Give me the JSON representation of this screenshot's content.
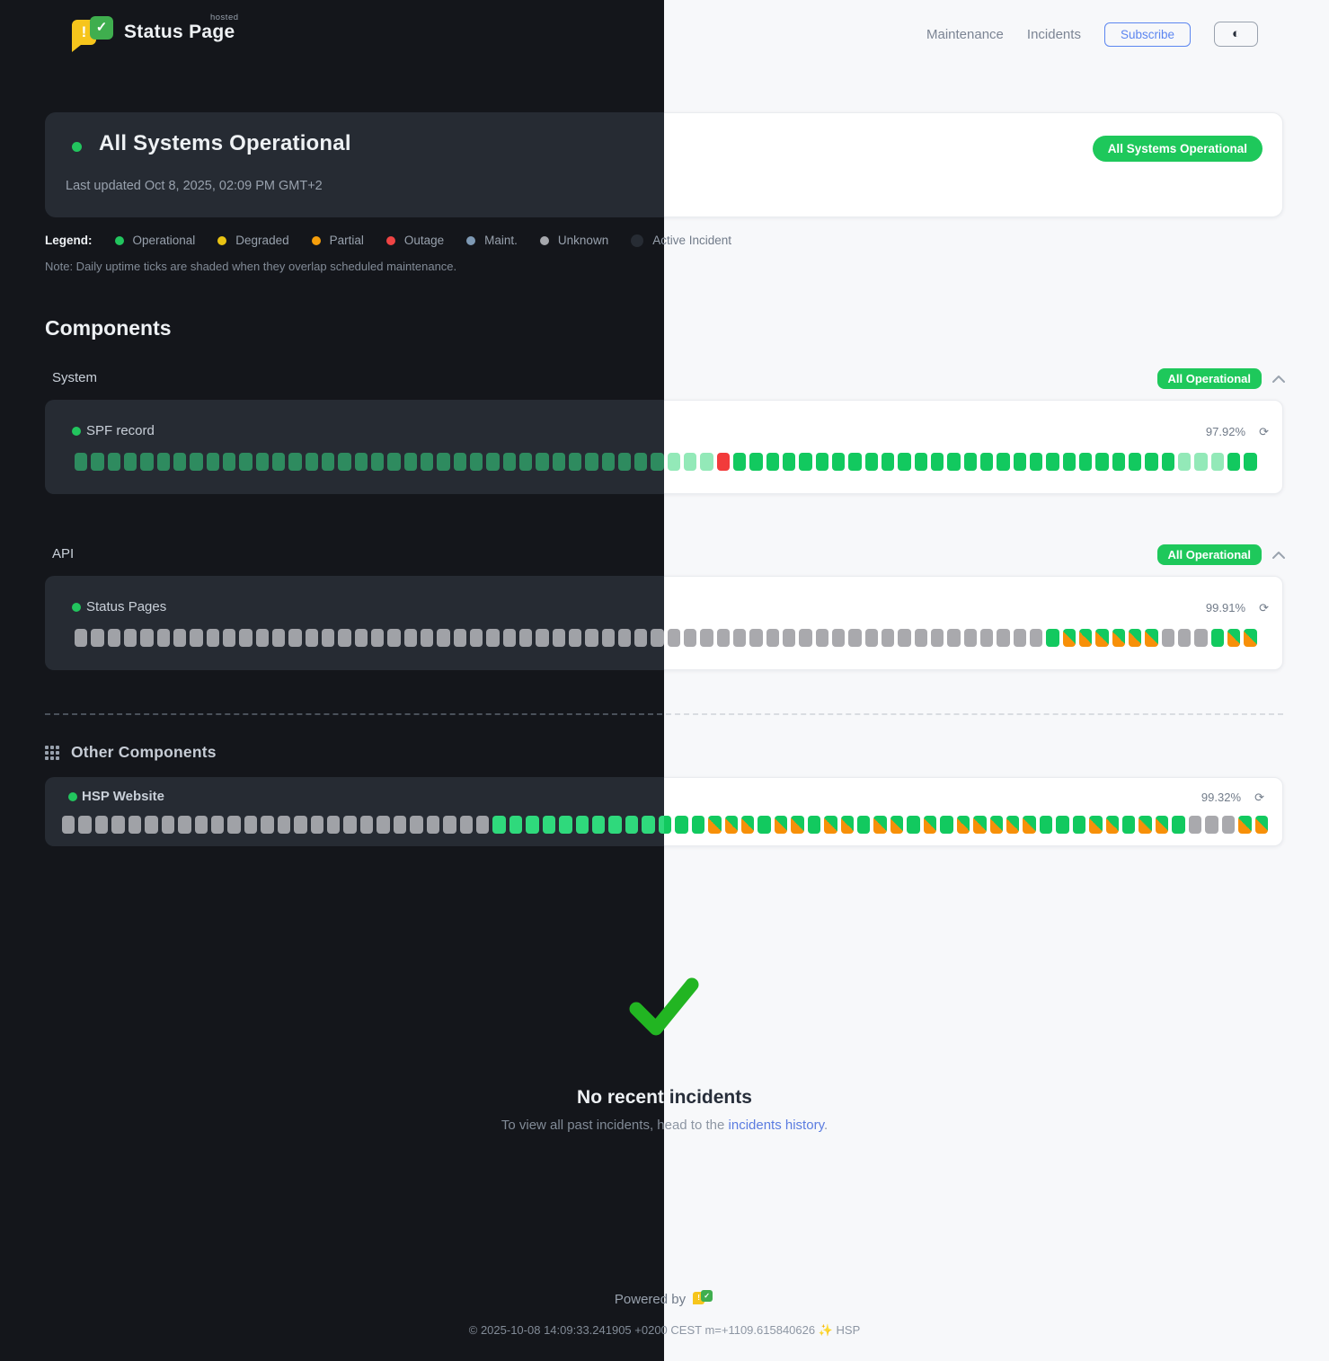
{
  "header": {
    "brand": {
      "name": "Status Page",
      "superscript": "hosted",
      "bang": "!",
      "check": "✓"
    },
    "nav": [
      {
        "label": "Maintenance"
      },
      {
        "label": "Incidents"
      }
    ],
    "subscribe_label": "Subscribe",
    "theme_toggle_icon": "◐"
  },
  "status": {
    "title": "All Systems Operational",
    "last_updated": "Last updated Oct 8, 2025, 02:09 PM GMT+2",
    "badge": "All Systems Operational",
    "badge_color": "#1ec85b"
  },
  "legend": {
    "label": "Legend:",
    "items": [
      {
        "label": "Operational",
        "color": "#22c55e"
      },
      {
        "label": "Degraded",
        "color": "#eac313"
      },
      {
        "label": "Partial",
        "color": "#f59e0b"
      },
      {
        "label": "Outage",
        "color": "#ef4444"
      },
      {
        "label": "Maint.",
        "color": "#7e99b4"
      },
      {
        "label": "Unknown",
        "color": "#a6a8ad"
      },
      {
        "label": "Active Incident",
        "color": "#272c34"
      }
    ],
    "note": "Note: Daily uptime ticks are shaded when they overlap scheduled maintenance."
  },
  "components": {
    "heading": "Components",
    "tick_legend": {
      "o": "operational",
      "s": "operational-shaded-maintenance",
      "u": "unknown",
      "x": "outage",
      "g": "operational-maintenance-split"
    },
    "groups": [
      {
        "name": "System",
        "badge": "All Operational",
        "items": [
          {
            "name": "SPF record",
            "uptime": "97.92%",
            "ticks": "sssssssssssssssssssssssssssssssssssssssxooooooooooooooooooooooooooosssoo"
          }
        ]
      },
      {
        "name": "API",
        "badge": "All Operational",
        "items": [
          {
            "name": "Status Pages",
            "uptime": "99.91%",
            "ticks": "uuuuuuuuuuuuuuuuuuuuuuuuuuuuuuuuuuuuuuuuuuuuuuuuuuuuuuuuuuuogggggguuuogg"
          }
        ]
      }
    ],
    "other": {
      "heading": "Other Components",
      "items": [
        {
          "name": "HSP Website",
          "uptime": "99.32%",
          "ticks": "uuuuuuuuuuuuuuuuuuuuuuuuuuooooooooooooogggoggoggoggogogggggoooggoggouuugg"
        }
      ]
    },
    "refresh_icon": "⟳"
  },
  "incidents": {
    "title": "No recent incidents",
    "subtitle_prefix": "To view all past incidents, head to the ",
    "link_label": "incidents history",
    "subtitle_suffix": ".",
    "check_color": "#22b522"
  },
  "footer": {
    "powered_by": "Powered by",
    "copyright": "© 2025-10-08 14:09:33.241905 +0200 CEST m=+1109.615840626 ✨ HSP"
  }
}
